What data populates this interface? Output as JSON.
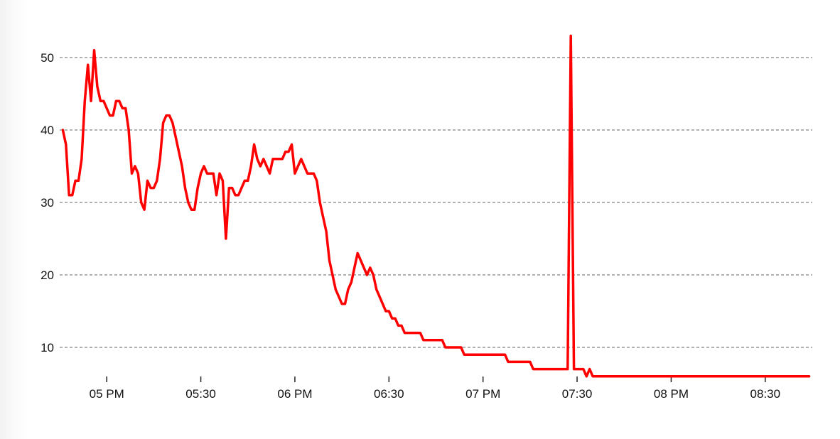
{
  "chart_data": {
    "type": "line",
    "title": "",
    "xlabel": "",
    "ylabel": "",
    "xlim": [
      "16:45",
      "20:45"
    ],
    "ylim": [
      6,
      54
    ],
    "grid": "horizontal dashed",
    "legend": "none",
    "y_ticks": [
      10,
      20,
      30,
      40,
      50
    ],
    "x_ticks": [
      {
        "t": "17:00",
        "label": "05 PM"
      },
      {
        "t": "17:30",
        "label": "05:30"
      },
      {
        "t": "18:00",
        "label": "06 PM"
      },
      {
        "t": "18:30",
        "label": "06:30"
      },
      {
        "t": "19:00",
        "label": "07 PM"
      },
      {
        "t": "19:30",
        "label": "07:30"
      },
      {
        "t": "20:00",
        "label": "08 PM"
      },
      {
        "t": "20:30",
        "label": "08:30"
      }
    ],
    "series": [
      {
        "color": "#ff0000",
        "points": [
          [
            "16:46",
            40
          ],
          [
            "16:47",
            38
          ],
          [
            "16:48",
            31
          ],
          [
            "16:49",
            31
          ],
          [
            "16:50",
            33
          ],
          [
            "16:51",
            33
          ],
          [
            "16:52",
            36
          ],
          [
            "16:53",
            44
          ],
          [
            "16:54",
            49
          ],
          [
            "16:55",
            44
          ],
          [
            "16:56",
            51
          ],
          [
            "16:57",
            46
          ],
          [
            "16:58",
            44
          ],
          [
            "16:59",
            44
          ],
          [
            "17:00",
            43
          ],
          [
            "17:01",
            42
          ],
          [
            "17:02",
            42
          ],
          [
            "17:03",
            44
          ],
          [
            "17:04",
            44
          ],
          [
            "17:05",
            43
          ],
          [
            "17:06",
            43
          ],
          [
            "17:07",
            40
          ],
          [
            "17:08",
            34
          ],
          [
            "17:09",
            35
          ],
          [
            "17:10",
            34
          ],
          [
            "17:11",
            30
          ],
          [
            "17:12",
            29
          ],
          [
            "17:13",
            33
          ],
          [
            "17:14",
            32
          ],
          [
            "17:15",
            32
          ],
          [
            "17:16",
            33
          ],
          [
            "17:17",
            36
          ],
          [
            "17:18",
            41
          ],
          [
            "17:19",
            42
          ],
          [
            "17:20",
            42
          ],
          [
            "17:21",
            41
          ],
          [
            "17:22",
            39
          ],
          [
            "17:23",
            37
          ],
          [
            "17:24",
            35
          ],
          [
            "17:25",
            32
          ],
          [
            "17:26",
            30
          ],
          [
            "17:27",
            29
          ],
          [
            "17:28",
            29
          ],
          [
            "17:29",
            32
          ],
          [
            "17:30",
            34
          ],
          [
            "17:31",
            35
          ],
          [
            "17:32",
            34
          ],
          [
            "17:33",
            34
          ],
          [
            "17:34",
            34
          ],
          [
            "17:35",
            31
          ],
          [
            "17:36",
            34
          ],
          [
            "17:37",
            33
          ],
          [
            "17:38",
            25
          ],
          [
            "17:39",
            32
          ],
          [
            "17:40",
            32
          ],
          [
            "17:41",
            31
          ],
          [
            "17:42",
            31
          ],
          [
            "17:43",
            32
          ],
          [
            "17:44",
            33
          ],
          [
            "17:45",
            33
          ],
          [
            "17:46",
            35
          ],
          [
            "17:47",
            38
          ],
          [
            "17:48",
            36
          ],
          [
            "17:49",
            35
          ],
          [
            "17:50",
            36
          ],
          [
            "17:51",
            35
          ],
          [
            "17:52",
            34
          ],
          [
            "17:53",
            36
          ],
          [
            "17:54",
            36
          ],
          [
            "17:55",
            36
          ],
          [
            "17:56",
            36
          ],
          [
            "17:57",
            37
          ],
          [
            "17:58",
            37
          ],
          [
            "17:59",
            38
          ],
          [
            "18:00",
            34
          ],
          [
            "18:01",
            35
          ],
          [
            "18:02",
            36
          ],
          [
            "18:03",
            35
          ],
          [
            "18:04",
            34
          ],
          [
            "18:05",
            34
          ],
          [
            "18:06",
            34
          ],
          [
            "18:07",
            33
          ],
          [
            "18:08",
            30
          ],
          [
            "18:09",
            28
          ],
          [
            "18:10",
            26
          ],
          [
            "18:11",
            22
          ],
          [
            "18:12",
            20
          ],
          [
            "18:13",
            18
          ],
          [
            "18:14",
            17
          ],
          [
            "18:15",
            16
          ],
          [
            "18:16",
            16
          ],
          [
            "18:17",
            18
          ],
          [
            "18:18",
            19
          ],
          [
            "18:19",
            21
          ],
          [
            "18:20",
            23
          ],
          [
            "18:21",
            22
          ],
          [
            "18:22",
            21
          ],
          [
            "18:23",
            20
          ],
          [
            "18:24",
            21
          ],
          [
            "18:25",
            20
          ],
          [
            "18:26",
            18
          ],
          [
            "18:27",
            17
          ],
          [
            "18:28",
            16
          ],
          [
            "18:29",
            15
          ],
          [
            "18:30",
            15
          ],
          [
            "18:31",
            14
          ],
          [
            "18:32",
            14
          ],
          [
            "18:33",
            13
          ],
          [
            "18:34",
            13
          ],
          [
            "18:35",
            12
          ],
          [
            "18:40",
            12
          ],
          [
            "18:41",
            11
          ],
          [
            "18:47",
            11
          ],
          [
            "18:48",
            10
          ],
          [
            "18:53",
            10
          ],
          [
            "18:54",
            9
          ],
          [
            "19:07",
            9
          ],
          [
            "19:08",
            8
          ],
          [
            "19:15",
            8
          ],
          [
            "19:16",
            7
          ],
          [
            "19:27",
            7
          ],
          [
            "19:28",
            53
          ],
          [
            "19:29",
            7
          ],
          [
            "19:32",
            7
          ],
          [
            "19:33",
            6
          ],
          [
            "19:34",
            7
          ],
          [
            "19:35",
            6
          ],
          [
            "20:44",
            6
          ]
        ]
      }
    ]
  }
}
